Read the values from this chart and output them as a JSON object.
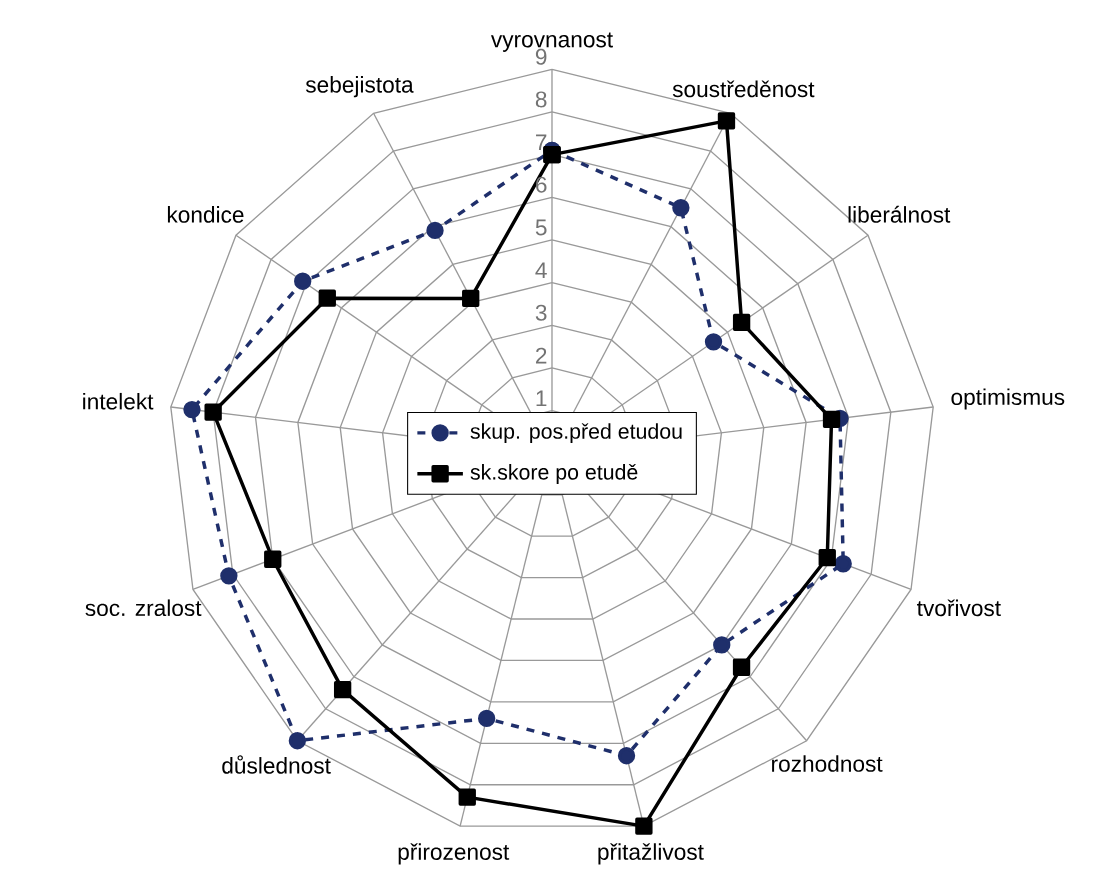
{
  "chart_data": {
    "type": "radar",
    "categories": [
      "vyrovnanost",
      "soustředěnost",
      "liberálnost",
      "optimismus",
      "tvořivost",
      "rozhodnost",
      "přitažlivost",
      "přirozenost",
      "důslednost",
      "soc. zralost",
      "intelekt",
      "kondice",
      "sebejistota"
    ],
    "ylim": [
      0,
      9
    ],
    "yticks": [
      1,
      2,
      3,
      4,
      5,
      6,
      7,
      8,
      9
    ],
    "grid": true,
    "legend": "center",
    "series": [
      {
        "name": "skup. pos.před etudou",
        "color": "#1f2f6b",
        "marker": "circle",
        "line_style": "dashed",
        "values": [
          7.1,
          6.5,
          4.6,
          6.8,
          7.3,
          6.0,
          7.3,
          6.4,
          9.0,
          8.1,
          8.5,
          7.1,
          5.9
        ]
      },
      {
        "name": "sk.skore po etudě",
        "color": "#000000",
        "marker": "square",
        "line_style": "solid",
        "values": [
          7.0,
          8.8,
          5.4,
          6.6,
          6.9,
          6.7,
          9.0,
          8.3,
          7.4,
          7.0,
          8.0,
          6.4,
          4.1
        ]
      }
    ]
  }
}
